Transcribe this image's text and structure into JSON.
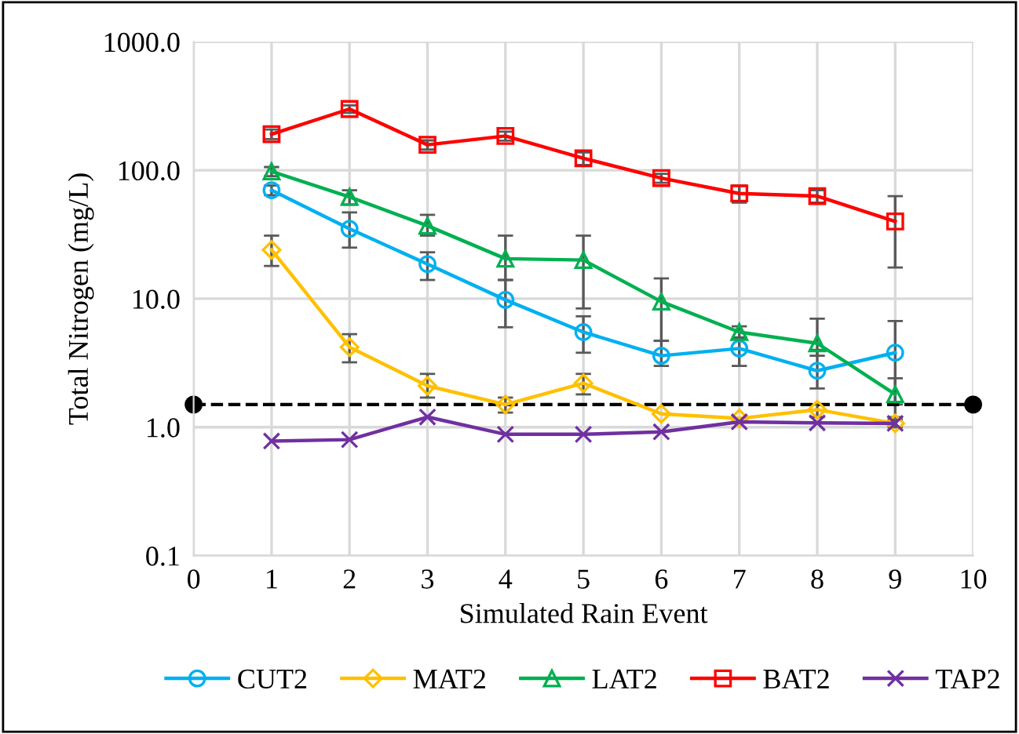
{
  "chart_data": {
    "type": "line",
    "xlabel": "Simulated Rain Event",
    "ylabel": "Total Nitrogen (mg/L)",
    "log": "y",
    "xlim": [
      0,
      10
    ],
    "xticks": [
      0,
      1,
      2,
      3,
      4,
      5,
      6,
      7,
      8,
      9,
      10
    ],
    "ylim": [
      0.1,
      1000
    ],
    "yticks": [
      {
        "value": 0.1,
        "label": "0.1"
      },
      {
        "value": 1,
        "label": "1.0"
      },
      {
        "value": 10,
        "label": "10.0"
      },
      {
        "value": 100,
        "label": "100.0"
      },
      {
        "value": 1000,
        "label": "1000.0"
      }
    ],
    "grid": true,
    "legend": "bottom",
    "line_style": "solid",
    "x": [
      1,
      2,
      3,
      4,
      5,
      6,
      7,
      8,
      9
    ],
    "series": [
      {
        "name": "CUT2",
        "color": "#00b0f0",
        "marker": "circle",
        "values": [
          70,
          35,
          18.6,
          9.8,
          5.5,
          3.6,
          4.1,
          2.75,
          3.8
        ],
        "errors": [
          [
            64,
            76
          ],
          [
            25,
            47
          ],
          [
            14,
            23
          ],
          [
            6,
            14
          ],
          [
            3.8,
            7.3
          ],
          [
            3.0,
            4.7
          ],
          [
            3.0,
            5.0
          ],
          [
            2.0,
            4.0
          ],
          [
            1.5,
            6.7
          ]
        ]
      },
      {
        "name": "MAT2",
        "color": "#ffc000",
        "marker": "diamond",
        "values": [
          24,
          4.2,
          2.1,
          1.5,
          2.2,
          1.27,
          1.17,
          1.37,
          1.07
        ],
        "errors": [
          [
            18,
            31
          ],
          [
            3.2,
            5.3
          ],
          [
            1.7,
            2.6
          ],
          [
            1.3,
            1.7
          ],
          [
            1.8,
            2.6
          ],
          null,
          null,
          [
            1.2,
            1.5
          ],
          [
            1.0,
            1.15
          ]
        ]
      },
      {
        "name": "LAT2",
        "color": "#00b050",
        "marker": "triangle",
        "values": [
          98,
          62,
          37,
          20.5,
          20,
          9.5,
          5.5,
          4.5,
          1.8
        ],
        "errors": [
          [
            90,
            106
          ],
          [
            54,
            70
          ],
          [
            31,
            45
          ],
          [
            14,
            31
          ],
          [
            8.4,
            31
          ],
          [
            4.7,
            14.4
          ],
          [
            4.9,
            6.1
          ],
          [
            3.6,
            7.0
          ],
          [
            1.2,
            2.4
          ]
        ]
      },
      {
        "name": "BAT2",
        "color": "#ff0000",
        "marker": "square",
        "values": [
          191,
          300,
          158,
          185,
          124,
          87,
          66,
          63,
          40
        ],
        "errors": [
          [
            175,
            208
          ],
          [
            280,
            320
          ],
          [
            145,
            171
          ],
          [
            170,
            200
          ],
          [
            110,
            138
          ],
          [
            80,
            94
          ],
          [
            56,
            76
          ],
          [
            56,
            70
          ],
          [
            17.5,
            63
          ]
        ]
      },
      {
        "name": "TAP2",
        "color": "#7030a0",
        "marker": "cross",
        "values": [
          0.78,
          0.8,
          1.2,
          0.88,
          0.88,
          0.92,
          1.1,
          1.08,
          1.07
        ]
      },
      {
        "color": "#000000",
        "marker": "circle",
        "line_style": "dashed",
        "x": [
          0,
          10
        ],
        "values": [
          1.5,
          1.5
        ]
      }
    ]
  }
}
